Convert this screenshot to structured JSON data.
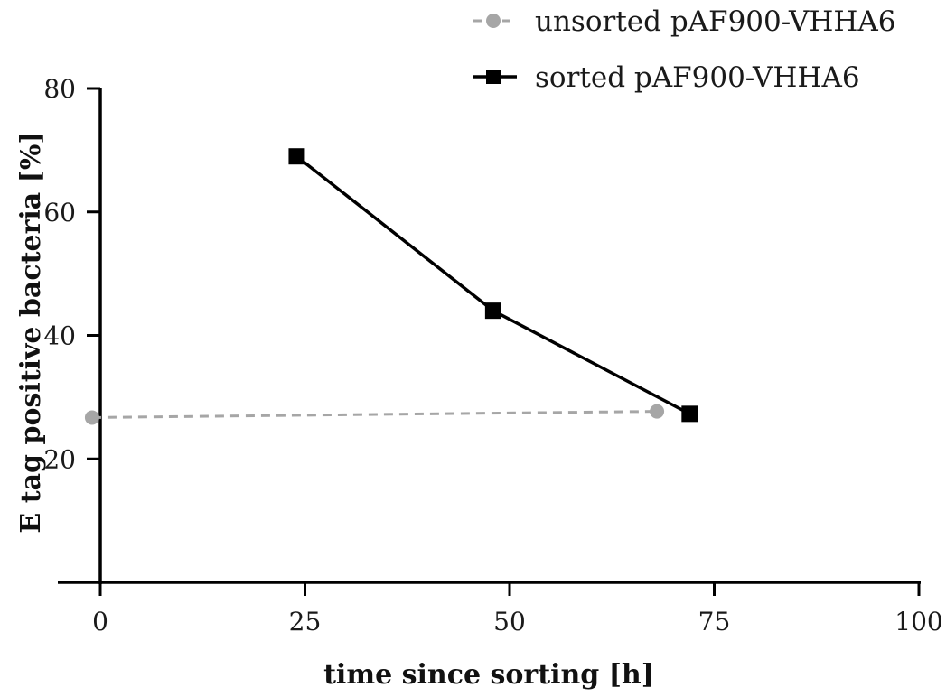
{
  "chart_data": {
    "type": "line",
    "xlabel": "time since sorting [h]",
    "ylabel": "E tag positive bacteria [%]",
    "xlim": [
      -2,
      100
    ],
    "ylim": [
      0,
      80
    ],
    "xticks": [
      0,
      25,
      50,
      75,
      100
    ],
    "yticks": [
      20,
      40,
      60,
      80
    ],
    "xtick_labels": [
      "0",
      "25",
      "50",
      "75",
      "100"
    ],
    "ytick_labels": [
      "20",
      "40",
      "60",
      "80"
    ],
    "grid": false,
    "legend_position": "top-right",
    "series": [
      {
        "name": "unsorted pAF900-VHHA6",
        "color": "#a6a6a6",
        "line_style": "dashed",
        "marker": "circle",
        "x": [
          -1,
          68
        ],
        "y": [
          26.7,
          27.7
        ]
      },
      {
        "name": "sorted pAF900-VHHA6",
        "color": "#000000",
        "line_style": "solid",
        "marker": "square",
        "x": [
          24,
          48,
          72
        ],
        "y": [
          69,
          44,
          27.3
        ]
      }
    ]
  }
}
